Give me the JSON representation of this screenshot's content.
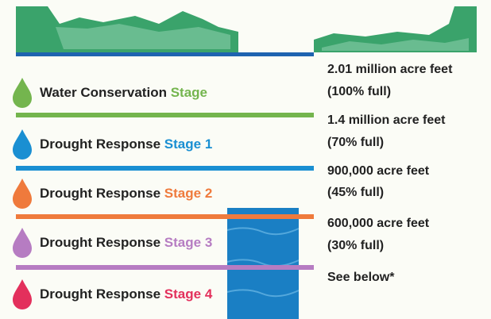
{
  "stages": [
    {
      "name": "Water Conservation",
      "stage": "Stage",
      "color": "#74b54e"
    },
    {
      "name": "Drought Response",
      "stage": "Stage 1",
      "color": "#1a8fd2"
    },
    {
      "name": "Drought Response",
      "stage": "Stage 2",
      "color": "#ef7a3c"
    },
    {
      "name": "Drought Response",
      "stage": "Stage 3",
      "color": "#b67cc2"
    },
    {
      "name": "Drought Response",
      "stage": "Stage 4",
      "color": "#e3305c"
    }
  ],
  "levels": [
    {
      "amount": "2.01 million acre feet",
      "percent": "(100% full)"
    },
    {
      "amount": "1.4 million acre feet",
      "percent": "(70% full)"
    },
    {
      "amount": "900,000 acre feet",
      "percent": "(45% full)"
    },
    {
      "amount": "600,000 acre feet",
      "percent": "(30% full)"
    },
    {
      "amount": "See below*"
    }
  ]
}
